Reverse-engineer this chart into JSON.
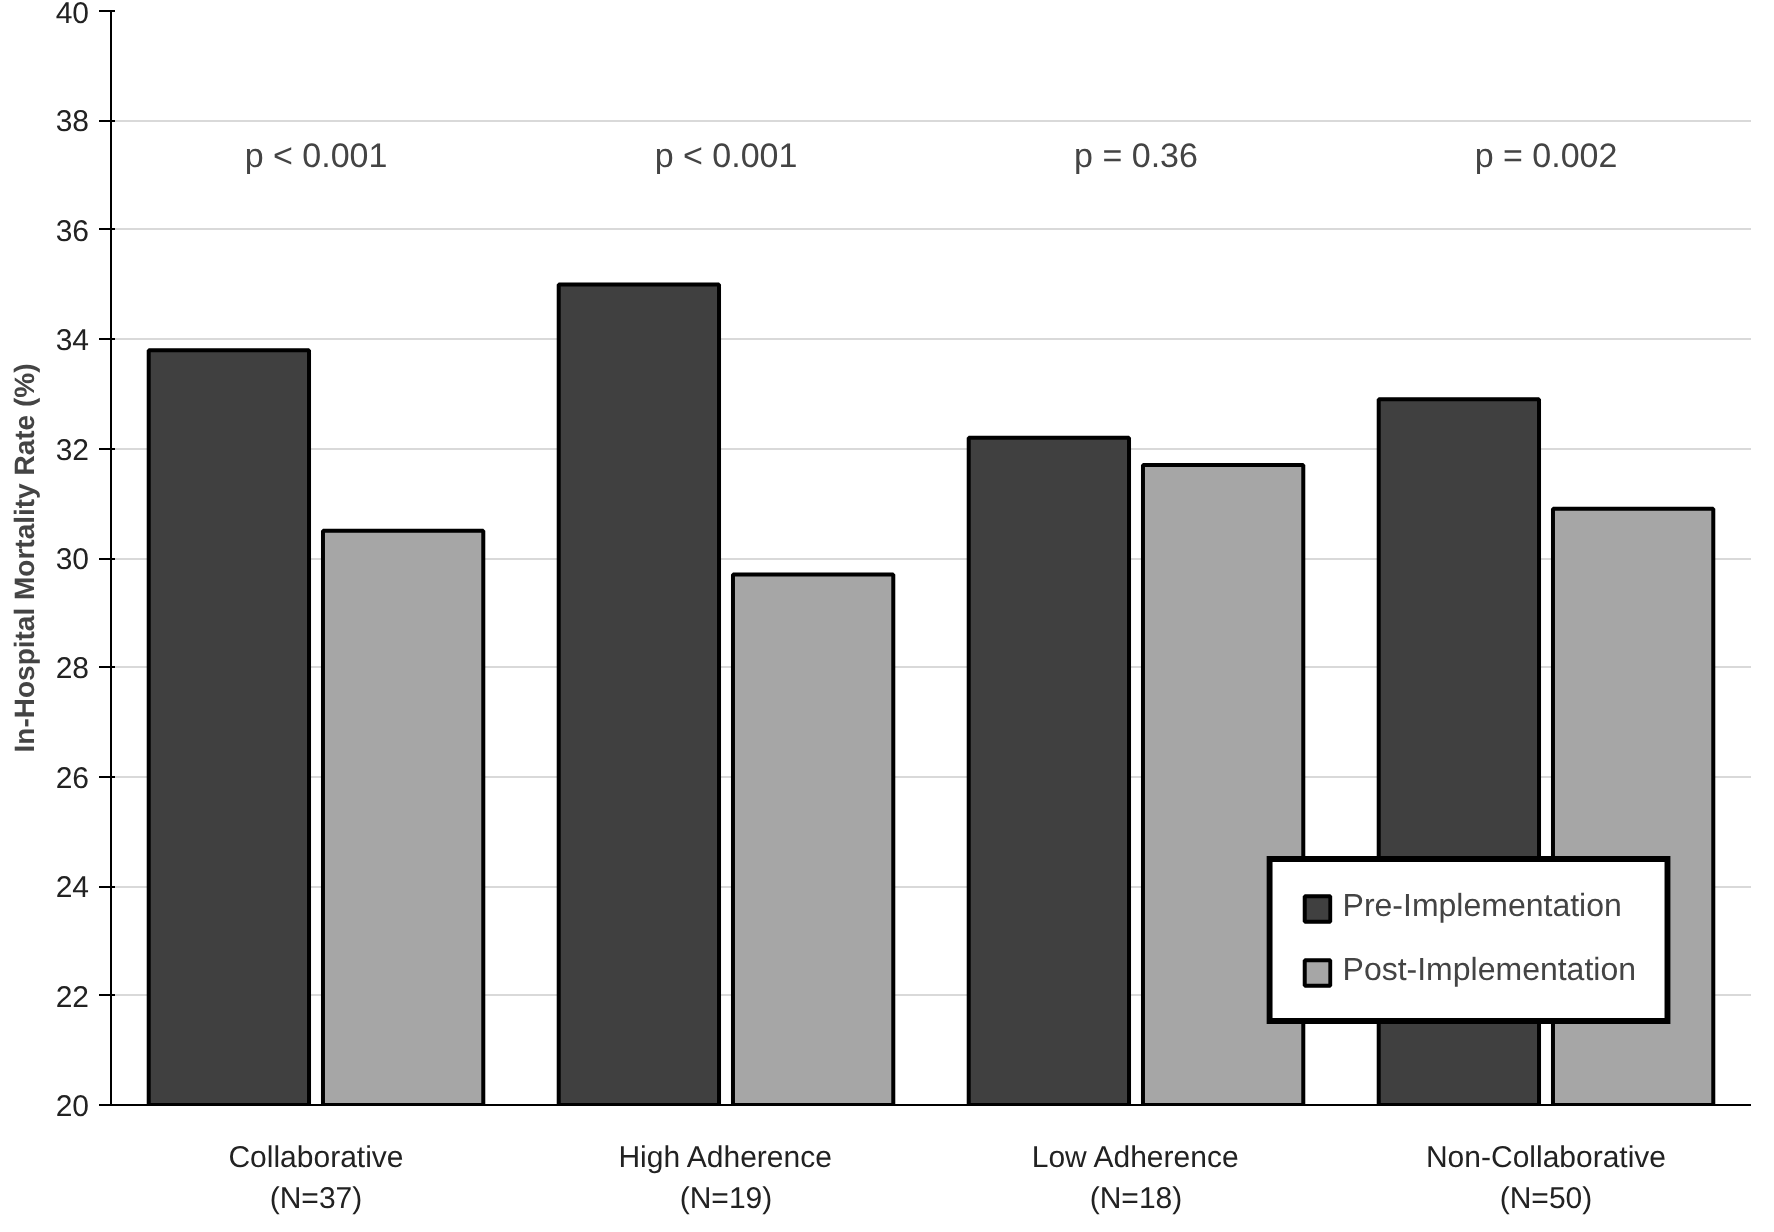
{
  "chart_data": {
    "type": "bar",
    "ylabel": "In-Hospital Mortality Rate (%)",
    "categories": [
      "Collaborative\n(N=37)",
      "High Adherence\n(N=19)",
      "Low Adherence\n(N=18)",
      "Non-Collaborative\n(N=50)"
    ],
    "series": [
      {
        "name": "Pre-Implementation",
        "color": "#404040",
        "values": [
          33.8,
          35.0,
          32.2,
          32.9
        ]
      },
      {
        "name": "Post-Implementation",
        "color": "#a6a6a6",
        "values": [
          30.5,
          29.7,
          31.7,
          30.9
        ]
      }
    ],
    "ylim": [
      20,
      40
    ],
    "yticks": [
      20,
      22,
      24,
      26,
      28,
      30,
      32,
      34,
      36,
      38,
      40
    ],
    "grid": "y",
    "legend": "bottom right",
    "annotations": [
      "p < 0.001",
      "p < 0.001",
      "p = 0.36",
      "p = 0.002"
    ]
  }
}
